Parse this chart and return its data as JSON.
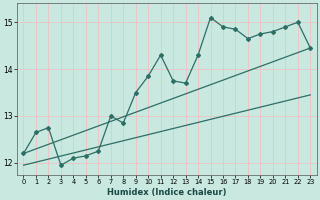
{
  "xlabel": "Humidex (Indice chaleur)",
  "background_color": "#c8e8e0",
  "grid_color": "#e8c8c8",
  "line_color": "#2d6e65",
  "x_data": [
    0,
    1,
    2,
    3,
    4,
    5,
    6,
    7,
    8,
    9,
    10,
    11,
    12,
    13,
    14,
    15,
    16,
    17,
    18,
    19,
    20,
    21,
    22,
    23
  ],
  "y_main": [
    12.2,
    12.65,
    12.75,
    11.95,
    12.1,
    12.15,
    12.25,
    13.0,
    12.85,
    13.5,
    13.85,
    14.3,
    13.75,
    13.7,
    14.3,
    15.1,
    14.9,
    14.85,
    14.65,
    14.75,
    14.8,
    14.9,
    15.0,
    14.45
  ],
  "ylim": [
    11.75,
    15.4
  ],
  "xlim": [
    -0.5,
    23.5
  ],
  "yticks": [
    12,
    13,
    14,
    15
  ],
  "xticks": [
    0,
    1,
    2,
    3,
    4,
    5,
    6,
    7,
    8,
    9,
    10,
    11,
    12,
    13,
    14,
    15,
    16,
    17,
    18,
    19,
    20,
    21,
    22,
    23
  ],
  "upper_trend_x": [
    0,
    23
  ],
  "upper_trend_y": [
    12.2,
    14.45
  ],
  "lower_trend_x": [
    0,
    23
  ],
  "lower_trend_y": [
    11.95,
    13.45
  ]
}
